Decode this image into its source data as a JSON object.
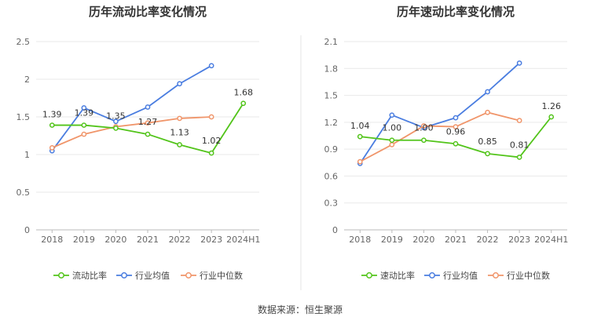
{
  "source_text": "数据来源：恒生聚源",
  "chart_data": [
    {
      "type": "line",
      "title": "历年流动比率变化情况",
      "categories": [
        "2018",
        "2019",
        "2020",
        "2021",
        "2022",
        "2023",
        "2024H1"
      ],
      "ylim": [
        0,
        2.5
      ],
      "yticks": [
        "0",
        "0.5",
        "1",
        "1.5",
        "2",
        "2.5"
      ],
      "ytick_values": [
        0,
        0.5,
        1,
        1.5,
        2,
        2.5
      ],
      "grid": true,
      "legend_position": "bottom",
      "series": [
        {
          "name": "流动比率",
          "color": "#52c41a",
          "values": [
            1.39,
            1.39,
            1.35,
            1.27,
            1.13,
            1.02,
            1.68
          ],
          "labels": [
            "1.39",
            "1.39",
            "1.35",
            "1.27",
            "1.13",
            "1.02",
            "1.68"
          ]
        },
        {
          "name": "行业均值",
          "color": "#4a7de0",
          "values": [
            1.05,
            1.62,
            1.44,
            1.63,
            1.94,
            2.18,
            null
          ]
        },
        {
          "name": "行业中位数",
          "color": "#f0956a",
          "values": [
            1.09,
            1.27,
            1.37,
            1.42,
            1.48,
            1.5,
            null
          ]
        }
      ]
    },
    {
      "type": "line",
      "title": "历年速动比率变化情况",
      "categories": [
        "2018",
        "2019",
        "2020",
        "2021",
        "2022",
        "2023",
        "2024H1"
      ],
      "ylim": [
        0,
        2.1
      ],
      "yticks": [
        "0",
        "0.3",
        "0.6",
        "0.9",
        "1.2",
        "1.5",
        "1.8",
        "2.1"
      ],
      "ytick_values": [
        0,
        0.3,
        0.6,
        0.9,
        1.2,
        1.5,
        1.8,
        2.1
      ],
      "grid": true,
      "legend_position": "bottom",
      "series": [
        {
          "name": "速动比率",
          "color": "#52c41a",
          "values": [
            1.04,
            1.0,
            1.0,
            0.96,
            0.85,
            0.81,
            1.26
          ],
          "labels": [
            "1.04",
            "1.00",
            "1.00",
            "0.96",
            "0.85",
            "0.81",
            "1.26"
          ]
        },
        {
          "name": "行业均值",
          "color": "#4a7de0",
          "values": [
            0.74,
            1.28,
            1.14,
            1.25,
            1.54,
            1.86,
            null
          ]
        },
        {
          "name": "行业中位数",
          "color": "#f0956a",
          "values": [
            0.76,
            0.95,
            1.16,
            1.15,
            1.31,
            1.22,
            null
          ]
        }
      ]
    }
  ]
}
